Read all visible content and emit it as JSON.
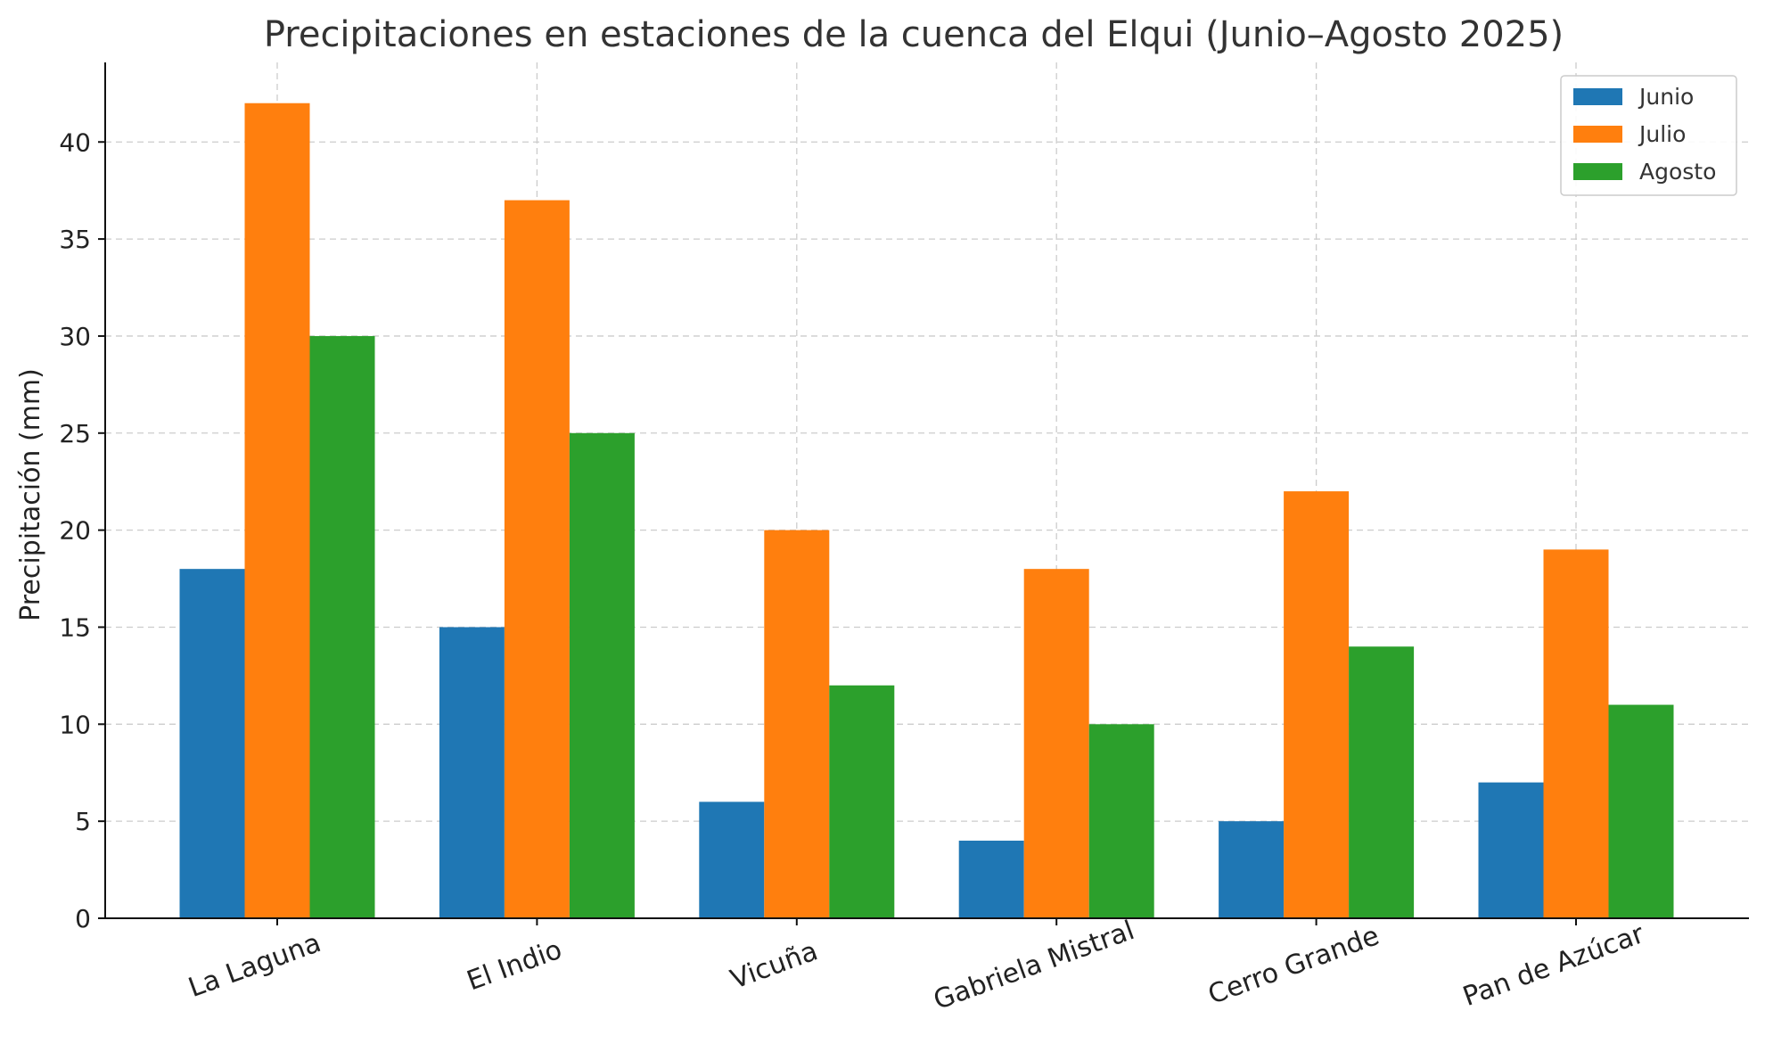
{
  "chart_data": {
    "type": "bar",
    "title": "Precipitaciones en estaciones de la cuenca del Elqui (Junio–Agosto 2025)",
    "xlabel": "",
    "ylabel": "Precipitación (mm)",
    "categories": [
      "La Laguna",
      "El Indio",
      "Vicuña",
      "Gabriela Mistral",
      "Cerro Grande",
      "Pan de Azúcar"
    ],
    "series": [
      {
        "name": "Junio",
        "color": "#1f77b4",
        "values": [
          18,
          15,
          6,
          4,
          5,
          7
        ]
      },
      {
        "name": "Julio",
        "color": "#ff7f0e",
        "values": [
          42,
          37,
          20,
          18,
          22,
          19
        ]
      },
      {
        "name": "Agosto",
        "color": "#2ca02c",
        "values": [
          30,
          25,
          12,
          10,
          14,
          11
        ]
      }
    ],
    "ylim": [
      0,
      44.1
    ],
    "yticks": [
      0,
      5,
      10,
      15,
      20,
      25,
      30,
      35,
      40
    ],
    "grid": true,
    "legend_position": "top-right"
  }
}
